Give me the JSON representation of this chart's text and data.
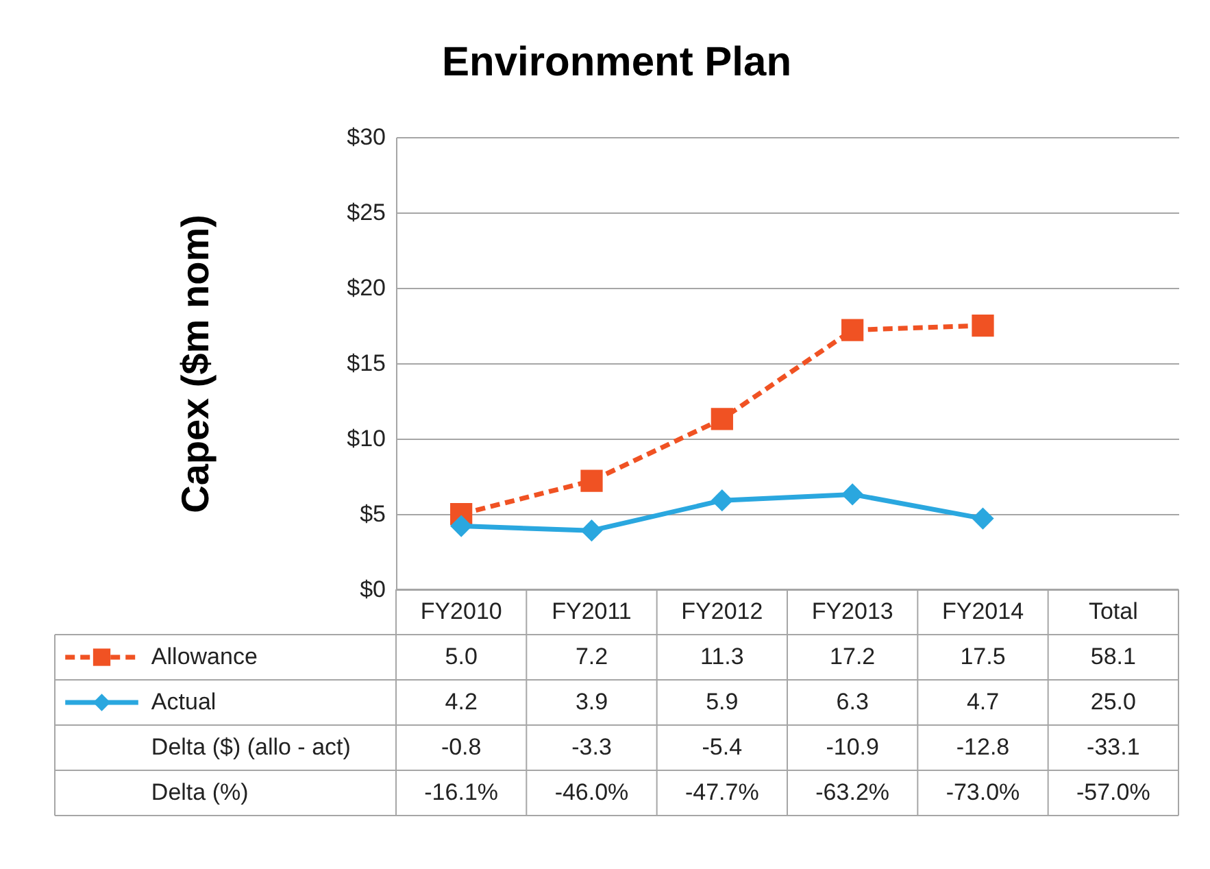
{
  "chart_data": {
    "type": "line",
    "title": "Environment Plan",
    "ylabel": "Capex ($m nom)",
    "categories": [
      "FY2010",
      "FY2011",
      "FY2012",
      "FY2013",
      "FY2014",
      "Total"
    ],
    "ylim": [
      0,
      30
    ],
    "yticks": [
      {
        "value": 0,
        "label": "$0"
      },
      {
        "value": 5,
        "label": "$5"
      },
      {
        "value": 10,
        "label": "$10"
      },
      {
        "value": 15,
        "label": "$15"
      },
      {
        "value": 20,
        "label": "$20"
      },
      {
        "value": 25,
        "label": "$25"
      },
      {
        "value": 30,
        "label": "$30"
      }
    ],
    "grid": "y",
    "legend": "bottom",
    "series": [
      {
        "name": "Allowance",
        "color": "#f05223",
        "marker": "square",
        "line_style": "dashed",
        "values": [
          5.0,
          7.2,
          11.3,
          17.2,
          17.5,
          null
        ],
        "value_labels": [
          "5.0",
          "7.2",
          "11.3",
          "17.2",
          "17.5",
          "58.1"
        ]
      },
      {
        "name": "Actual",
        "color": "#2aa7df",
        "marker": "diamond",
        "line_style": "solid",
        "values": [
          4.2,
          3.9,
          5.9,
          6.3,
          4.7,
          null
        ],
        "value_labels": [
          "4.2",
          "3.9",
          "5.9",
          "6.3",
          "4.7",
          "25.0"
        ]
      },
      {
        "name": "Delta ($) (allo - act)",
        "values": [
          null,
          null,
          null,
          null,
          null,
          null
        ],
        "value_labels": [
          "-0.8",
          "-3.3",
          "-5.4",
          "-10.9",
          "-12.8",
          "-33.1"
        ]
      },
      {
        "name": "Delta (%)",
        "values": [
          null,
          null,
          null,
          null,
          null,
          null
        ],
        "value_labels": [
          "-16.1%",
          "-46.0%",
          "-47.7%",
          "-63.2%",
          "-73.0%",
          "-57.0%"
        ]
      }
    ]
  }
}
